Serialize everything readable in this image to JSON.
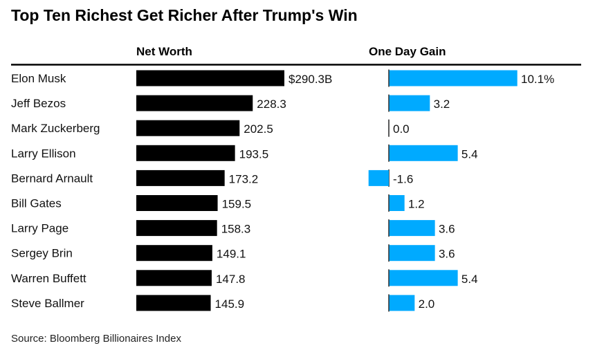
{
  "chart_data": {
    "type": "bar",
    "orientation": "horizontal",
    "title": "Top Ten Richest Get Richer After Trump's Win",
    "source": "Source: Bloomberg Billionaires Index",
    "categories": [
      "Elon Musk",
      "Jeff Bezos",
      "Mark Zuckerberg",
      "Larry Ellison",
      "Bernard Arnault",
      "Bill Gates",
      "Larry Page",
      "Sergey Brin",
      "Warren Buffett",
      "Steve Ballmer"
    ],
    "series": [
      {
        "name": "Net Worth",
        "unit": "$B",
        "color": "#000000",
        "values": [
          290.3,
          228.3,
          202.5,
          193.5,
          173.2,
          159.5,
          158.3,
          149.1,
          147.8,
          145.9
        ],
        "labels": [
          "$290.3B",
          "228.3",
          "202.5",
          "193.5",
          "173.2",
          "159.5",
          "158.3",
          "149.1",
          "147.8",
          "145.9"
        ]
      },
      {
        "name": "One Day Gain",
        "unit": "%",
        "color": "#00AAFF",
        "values": [
          10.1,
          3.2,
          0.0,
          5.4,
          -1.6,
          1.2,
          3.6,
          3.6,
          5.4,
          2.0
        ],
        "labels": [
          "10.1%",
          "3.2",
          "0.0",
          "5.4",
          "-1.6",
          "1.2",
          "3.6",
          "3.6",
          "5.4",
          "2.0"
        ]
      }
    ],
    "grid": false,
    "legend": "none"
  }
}
